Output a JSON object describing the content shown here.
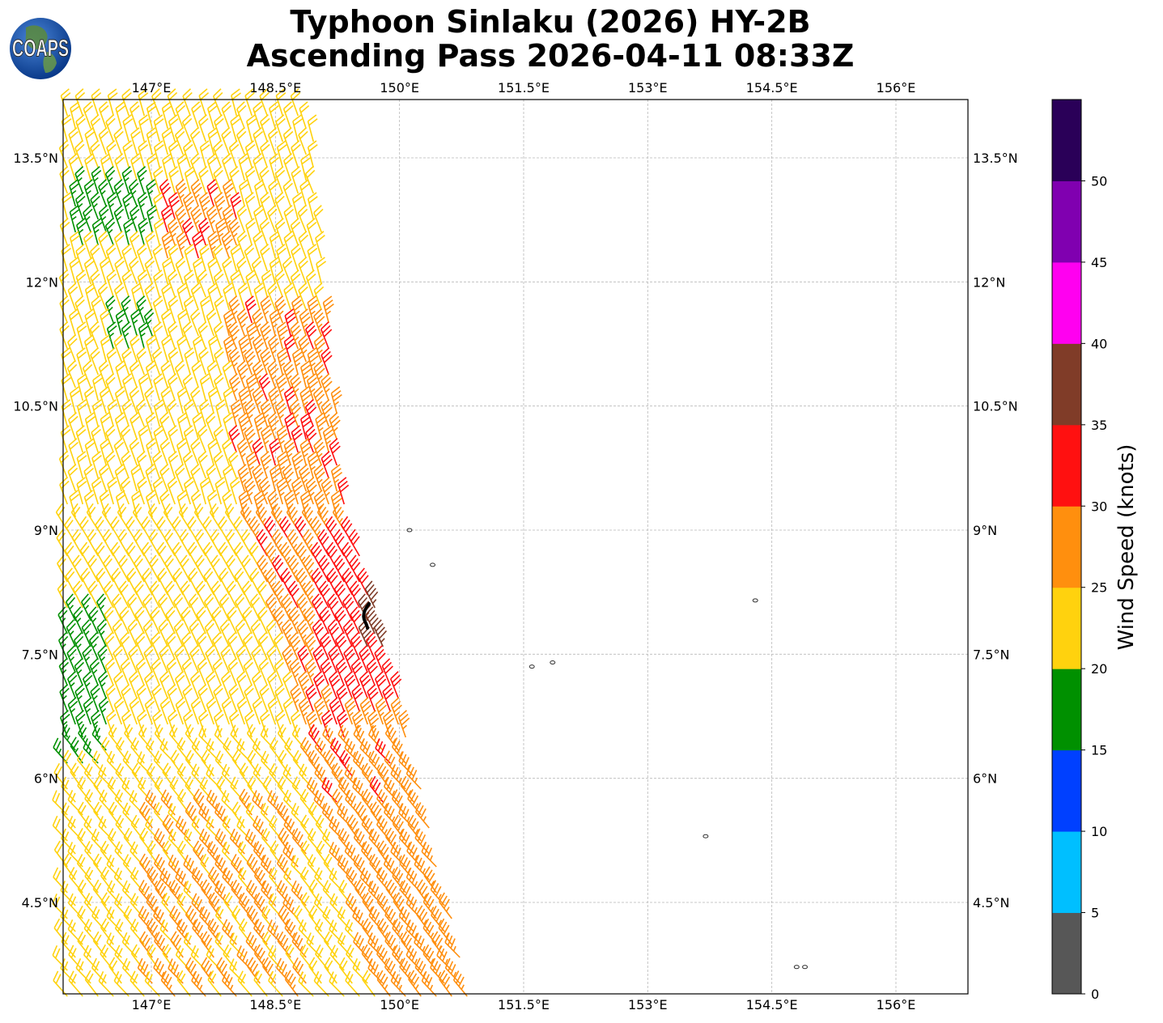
{
  "header": {
    "title_line_1": "Typhoon Sinlaku (2026) HY-2B",
    "title_line_2": "Ascending Pass 2026-04-11 08:33Z"
  },
  "logo": {
    "text": "COAPS"
  },
  "map": {
    "lon_range": [
      146.0,
      157.0
    ],
    "lat_range": [
      3.3,
      14.2
    ],
    "lon_ticks": [
      {
        "value": 147.0,
        "label": "147°E"
      },
      {
        "value": 148.5,
        "label": "148.5°E"
      },
      {
        "value": 150.0,
        "label": "150°E"
      },
      {
        "value": 151.5,
        "label": "151.5°E"
      },
      {
        "value": 153.0,
        "label": "153°E"
      },
      {
        "value": 154.5,
        "label": "154.5°E"
      },
      {
        "value": 156.0,
        "label": "156°E"
      }
    ],
    "lat_ticks": [
      {
        "value": 13.5,
        "label": "13.5°N"
      },
      {
        "value": 12.0,
        "label": "12°N"
      },
      {
        "value": 10.5,
        "label": "10.5°N"
      },
      {
        "value": 9.0,
        "label": "9°N"
      },
      {
        "value": 7.5,
        "label": "7.5°N"
      },
      {
        "value": 6.0,
        "label": "6°N"
      },
      {
        "value": 4.5,
        "label": "4.5°N"
      }
    ],
    "gridlines": true,
    "storm_center_color": "#000000",
    "islands": [
      {
        "lon": 150.12,
        "lat": 9.0
      },
      {
        "lon": 150.4,
        "lat": 8.58
      },
      {
        "lon": 151.6,
        "lat": 7.35
      },
      {
        "lon": 151.85,
        "lat": 7.4
      },
      {
        "lon": 154.3,
        "lat": 8.15
      },
      {
        "lon": 153.7,
        "lat": 5.3
      },
      {
        "lon": 154.8,
        "lat": 3.72
      },
      {
        "lon": 154.9,
        "lat": 3.72
      }
    ]
  },
  "colorbar": {
    "title": "Wind Speed (knots)",
    "bins": [
      {
        "min": 0,
        "max": 5,
        "color": "#575757"
      },
      {
        "min": 5,
        "max": 10,
        "color": "#00bfff"
      },
      {
        "min": 10,
        "max": 15,
        "color": "#0040ff"
      },
      {
        "min": 15,
        "max": 20,
        "color": "#009000"
      },
      {
        "min": 20,
        "max": 25,
        "color": "#ffd20e"
      },
      {
        "min": 25,
        "max": 30,
        "color": "#ff8f0e"
      },
      {
        "min": 30,
        "max": 35,
        "color": "#ff1010"
      },
      {
        "min": 35,
        "max": 40,
        "color": "#803c28"
      },
      {
        "min": 40,
        "max": 45,
        "color": "#ff00f0"
      },
      {
        "min": 45,
        "max": 50,
        "color": "#8000b0"
      },
      {
        "min": 50,
        "max": 55,
        "color": "#2a0058"
      }
    ],
    "tick_labels": [
      "0",
      "5",
      "10",
      "15",
      "20",
      "25",
      "30",
      "35",
      "40",
      "45",
      "50"
    ]
  }
}
